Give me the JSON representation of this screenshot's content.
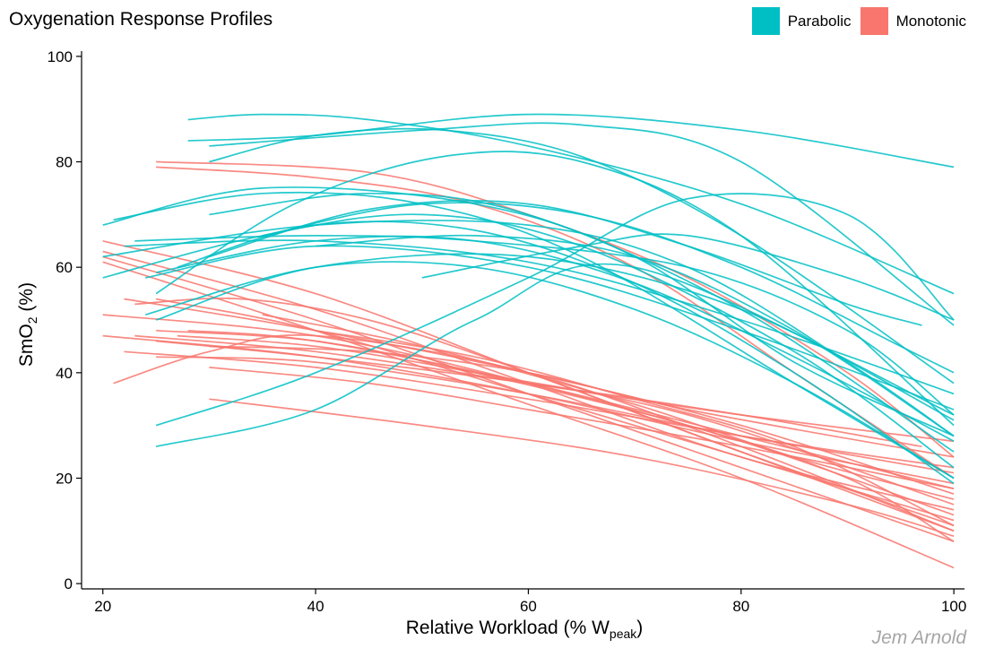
{
  "chart_data": {
    "type": "line",
    "title": "Oxygenation Response Profiles",
    "xlabel_main": "Relative Workload (% W",
    "xlabel_sub": "peak",
    "xlabel_close": ")",
    "ylabel_main": "SmO",
    "ylabel_sub": "2",
    "ylabel_close": " (%)",
    "caption": "Jem Arnold",
    "xlim": [
      18,
      101
    ],
    "ylim": [
      -1,
      101
    ],
    "xticks": [
      20,
      40,
      60,
      80,
      100
    ],
    "yticks": [
      0,
      20,
      40,
      60,
      80,
      100
    ],
    "legend": [
      {
        "name": "Parabolic",
        "color": "#00BFC4"
      },
      {
        "name": "Monotonic",
        "color": "#F8766D"
      }
    ],
    "series": [
      {
        "group": "Parabolic",
        "x": [
          28,
          35,
          45,
          60,
          80,
          100
        ],
        "y": [
          88,
          89,
          88,
          83,
          72,
          55
        ]
      },
      {
        "group": "Parabolic",
        "x": [
          28,
          40,
          60,
          80,
          100
        ],
        "y": [
          84,
          85,
          89,
          86,
          79
        ]
      },
      {
        "group": "Parabolic",
        "x": [
          30,
          50,
          65,
          80,
          100
        ],
        "y": [
          83,
          86,
          87,
          80,
          49
        ]
      },
      {
        "group": "Parabolic",
        "x": [
          30,
          40,
          52,
          65,
          80,
          100
        ],
        "y": [
          80,
          85,
          86,
          81,
          66,
          38
        ]
      },
      {
        "group": "Parabolic",
        "x": [
          25,
          38,
          52,
          65,
          80,
          100
        ],
        "y": [
          55,
          72,
          81,
          80,
          66,
          30
        ]
      },
      {
        "group": "Parabolic",
        "x": [
          25,
          40,
          60,
          75,
          90,
          100
        ],
        "y": [
          30,
          40,
          58,
          73,
          70,
          50
        ]
      },
      {
        "group": "Parabolic",
        "x": [
          25,
          40,
          55,
          70,
          100
        ],
        "y": [
          26,
          33,
          50,
          60,
          32
        ]
      },
      {
        "group": "Parabolic",
        "x": [
          20,
          35,
          55,
          70,
          85,
          100
        ],
        "y": [
          68,
          75,
          72,
          62,
          42,
          28
        ]
      },
      {
        "group": "Parabolic",
        "x": [
          21,
          35,
          50,
          65,
          85,
          100
        ],
        "y": [
          69,
          74,
          72,
          62,
          38,
          20
        ]
      },
      {
        "group": "Parabolic",
        "x": [
          20,
          35,
          50,
          65,
          85,
          100
        ],
        "y": [
          58,
          66,
          70,
          64,
          44,
          22
        ]
      },
      {
        "group": "Parabolic",
        "x": [
          20,
          40,
          60,
          75,
          90,
          100
        ],
        "y": [
          62,
          68,
          68,
          60,
          42,
          28
        ]
      },
      {
        "group": "Parabolic",
        "x": [
          23,
          40,
          55,
          75,
          90,
          100
        ],
        "y": [
          65,
          66,
          65,
          60,
          48,
          32
        ]
      },
      {
        "group": "Parabolic",
        "x": [
          22,
          40,
          60,
          80,
          100
        ],
        "y": [
          64,
          65,
          61,
          50,
          36
        ]
      },
      {
        "group": "Parabolic",
        "x": [
          25,
          40,
          55,
          70,
          85,
          100
        ],
        "y": [
          59,
          65,
          65,
          57,
          43,
          27
        ]
      },
      {
        "group": "Parabolic",
        "x": [
          24,
          40,
          60,
          80,
          100
        ],
        "y": [
          58,
          64,
          60,
          48,
          33
        ]
      },
      {
        "group": "Parabolic",
        "x": [
          25,
          40,
          60,
          80,
          100
        ],
        "y": [
          50,
          60,
          62,
          52,
          31
        ]
      },
      {
        "group": "Parabolic",
        "x": [
          24,
          40,
          55,
          70,
          85,
          100
        ],
        "y": [
          51,
          60,
          60,
          52,
          38,
          20
        ]
      },
      {
        "group": "Parabolic",
        "x": [
          27,
          40,
          55,
          70,
          85,
          100
        ],
        "y": [
          60,
          68,
          67,
          57,
          40,
          19
        ]
      },
      {
        "group": "Parabolic",
        "x": [
          30,
          45,
          60,
          75,
          90,
          97
        ],
        "y": [
          62,
          71,
          72,
          64,
          53,
          49
        ]
      },
      {
        "group": "Parabolic",
        "x": [
          35,
          50,
          65,
          80,
          95,
          100
        ],
        "y": [
          66,
          72,
          70,
          60,
          45,
          40
        ]
      },
      {
        "group": "Parabolic",
        "x": [
          30,
          45,
          60,
          80,
          100
        ],
        "y": [
          70,
          74,
          70,
          52,
          25
        ]
      },
      {
        "group": "Parabolic",
        "x": [
          40,
          55,
          70,
          85,
          100
        ],
        "y": [
          64,
          66,
          62,
          48,
          28
        ]
      },
      {
        "group": "Parabolic",
        "x": [
          50,
          65,
          75,
          90,
          100
        ],
        "y": [
          58,
          64,
          66,
          58,
          50
        ]
      },
      {
        "group": "Monotonic",
        "x": [
          25,
          40,
          55,
          70,
          85,
          100
        ],
        "y": [
          79,
          77,
          72,
          60,
          40,
          20
        ]
      },
      {
        "group": "Monotonic",
        "x": [
          25,
          45,
          60,
          75,
          90,
          100
        ],
        "y": [
          80,
          78,
          70,
          58,
          40,
          24
        ]
      },
      {
        "group": "Monotonic",
        "x": [
          20,
          40,
          60,
          80,
          100
        ],
        "y": [
          65,
          55,
          40,
          25,
          10
        ]
      },
      {
        "group": "Monotonic",
        "x": [
          20,
          40,
          60,
          80,
          100
        ],
        "y": [
          63,
          52,
          38,
          24,
          14
        ]
      },
      {
        "group": "Monotonic",
        "x": [
          20,
          40,
          60,
          80,
          100
        ],
        "y": [
          62,
          50,
          36,
          22,
          8
        ]
      },
      {
        "group": "Monotonic",
        "x": [
          20,
          40,
          60,
          80,
          100
        ],
        "y": [
          61,
          48,
          34,
          20,
          3
        ]
      },
      {
        "group": "Monotonic",
        "x": [
          22,
          40,
          60,
          80,
          100
        ],
        "y": [
          54,
          48,
          40,
          30,
          17
        ]
      },
      {
        "group": "Monotonic",
        "x": [
          20,
          40,
          60,
          80,
          100
        ],
        "y": [
          51,
          47,
          38,
          27,
          13
        ]
      },
      {
        "group": "Monotonic",
        "x": [
          20,
          40,
          60,
          80,
          100
        ],
        "y": [
          47,
          43,
          36,
          27,
          19
        ]
      },
      {
        "group": "Monotonic",
        "x": [
          23,
          40,
          60,
          80,
          100
        ],
        "y": [
          47,
          44,
          38,
          32,
          27
        ]
      },
      {
        "group": "Monotonic",
        "x": [
          22,
          40,
          60,
          80,
          100
        ],
        "y": [
          44,
          41,
          35,
          28,
          21
        ]
      },
      {
        "group": "Monotonic",
        "x": [
          25,
          40,
          60,
          80,
          100
        ],
        "y": [
          54,
          48,
          36,
          24,
          12
        ]
      },
      {
        "group": "Monotonic",
        "x": [
          28,
          40,
          60,
          80,
          100
        ],
        "y": [
          48,
          46,
          38,
          28,
          18
        ]
      },
      {
        "group": "Monotonic",
        "x": [
          30,
          45,
          60,
          80,
          100
        ],
        "y": [
          41,
          38,
          33,
          26,
          18
        ]
      },
      {
        "group": "Monotonic",
        "x": [
          27,
          40,
          55,
          75,
          100
        ],
        "y": [
          47,
          45,
          40,
          32,
          15
        ]
      },
      {
        "group": "Monotonic",
        "x": [
          21,
          30,
          40,
          60,
          80,
          100
        ],
        "y": [
          38,
          44,
          47,
          40,
          26,
          10
        ]
      },
      {
        "group": "Monotonic",
        "x": [
          23,
          33,
          45,
          60,
          80,
          100
        ],
        "y": [
          53,
          54,
          50,
          40,
          25,
          11
        ]
      },
      {
        "group": "Monotonic",
        "x": [
          25,
          40,
          55,
          75,
          90,
          100
        ],
        "y": [
          48,
          46,
          40,
          30,
          20,
          8
        ]
      },
      {
        "group": "Monotonic",
        "x": [
          30,
          45,
          60,
          75,
          100
        ],
        "y": [
          45,
          44,
          40,
          33,
          24
        ]
      },
      {
        "group": "Monotonic",
        "x": [
          25,
          40,
          60,
          80,
          100
        ],
        "y": [
          43,
          42,
          36,
          28,
          22
        ]
      },
      {
        "group": "Monotonic",
        "x": [
          30,
          50,
          70,
          90,
          100
        ],
        "y": [
          35,
          30,
          24,
          15,
          9
        ]
      },
      {
        "group": "Monotonic",
        "x": [
          25,
          40,
          60,
          80,
          97
        ],
        "y": [
          46,
          43,
          38,
          32,
          26
        ]
      },
      {
        "group": "Monotonic",
        "x": [
          35,
          50,
          70,
          85,
          100
        ],
        "y": [
          51,
          45,
          34,
          24,
          16
        ]
      },
      {
        "group": "Monotonic",
        "x": [
          40,
          55,
          70,
          85,
          100
        ],
        "y": [
          48,
          43,
          35,
          26,
          11
        ]
      }
    ]
  }
}
